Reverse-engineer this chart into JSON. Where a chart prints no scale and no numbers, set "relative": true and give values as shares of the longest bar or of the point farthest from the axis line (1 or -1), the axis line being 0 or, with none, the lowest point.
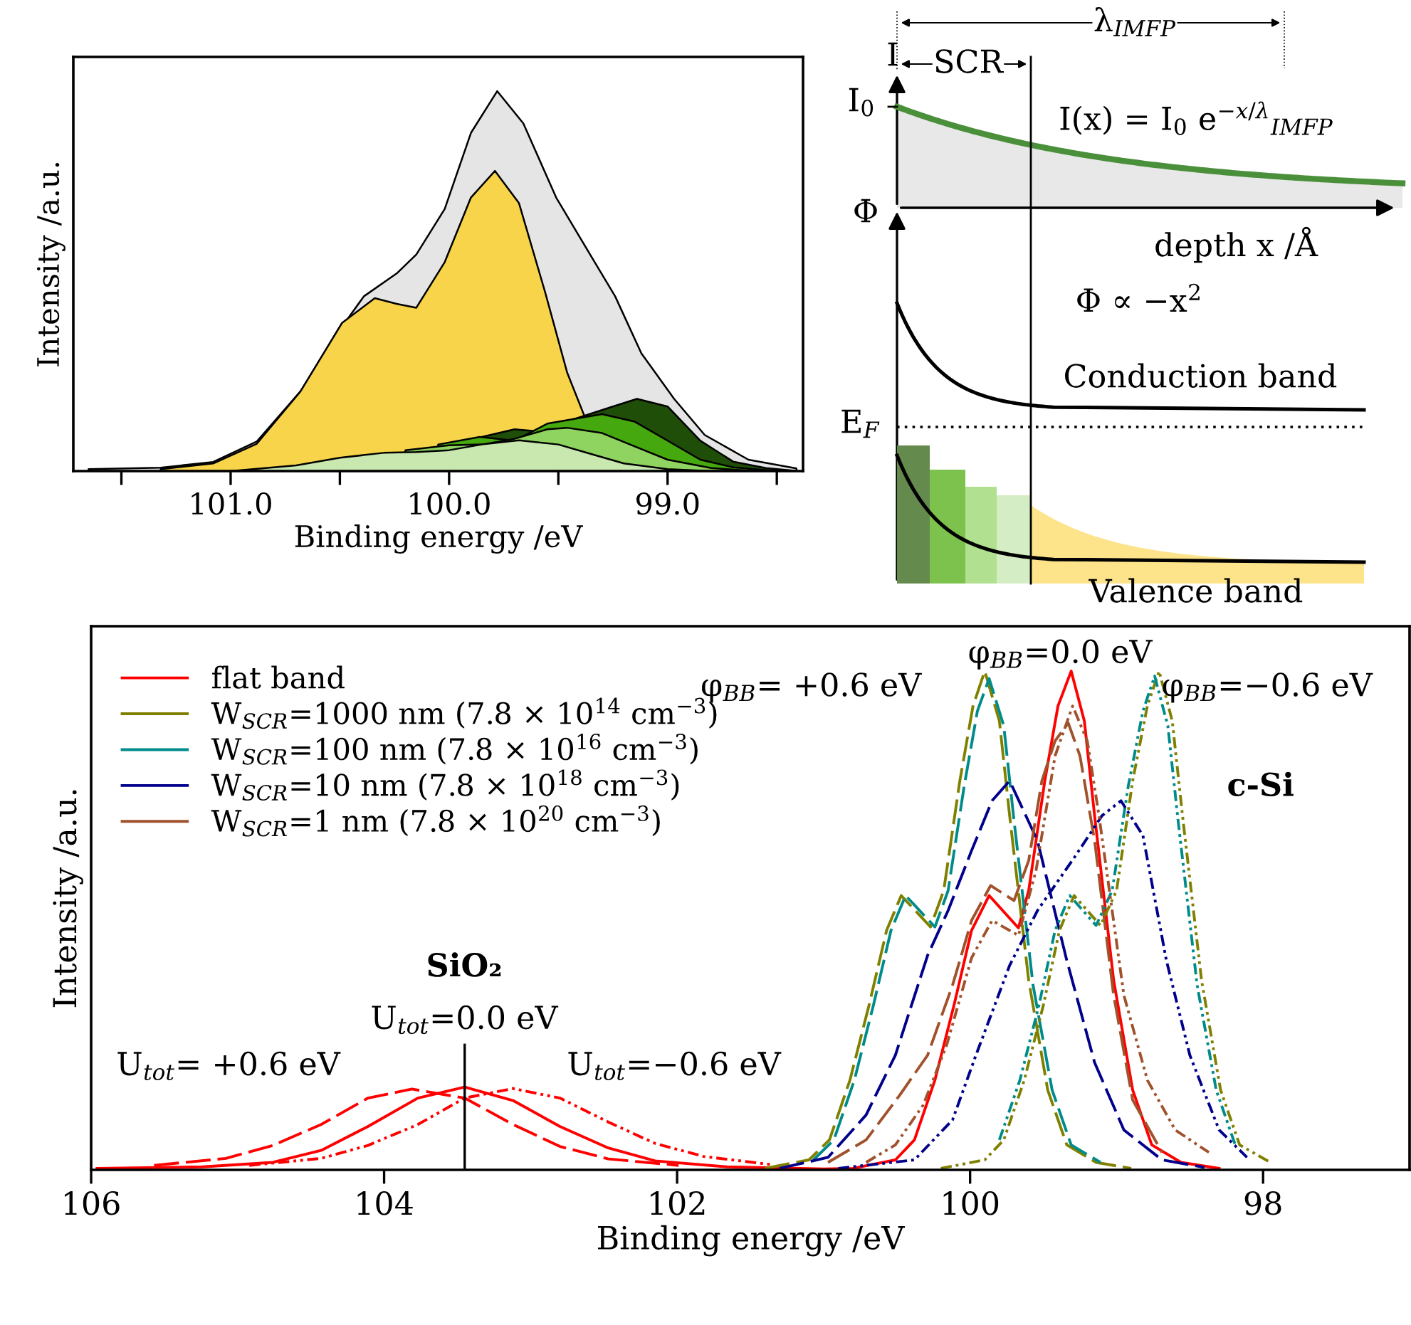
{
  "chart_data": [
    {
      "type": "area",
      "relative": true,
      "xlabel": "Binding energy /eV",
      "ylabel": "Intensity /a.u.",
      "xlim": [
        101.72,
        98.38
      ],
      "xticks": [
        {
          "value": 101.5,
          "label": null
        },
        {
          "value": 101,
          "label": "101.0"
        },
        {
          "value": 100.5,
          "label": null
        },
        {
          "value": 100,
          "label": "100.0"
        },
        {
          "value": 99.5,
          "label": null
        },
        {
          "value": 99,
          "label": "99.0"
        },
        {
          "value": 98.5,
          "label": null
        }
      ],
      "series": [
        {
          "color": "#e5e5e5",
          "x": [
            101.65,
            101.32,
            101.08,
            100.88,
            100.68,
            100.54,
            100.39,
            100.24,
            100.15,
            100.02,
            99.9,
            99.78,
            99.66,
            99.51,
            99.36,
            99.24,
            99.12,
            98.97,
            98.83,
            98.63,
            98.41
          ],
          "values": [
            0.005,
            0.009,
            0.024,
            0.078,
            0.21,
            0.34,
            0.46,
            0.52,
            0.57,
            0.69,
            0.89,
            1.0,
            0.915,
            0.72,
            0.575,
            0.46,
            0.31,
            0.19,
            0.095,
            0.03,
            0.007
          ]
        },
        {
          "color": "#f7d44a",
          "x": [
            101.32,
            101.08,
            100.88,
            100.68,
            100.49,
            100.34,
            100.24,
            100.15,
            100.02,
            99.9,
            99.79,
            99.68,
            99.56,
            99.46,
            99.38
          ],
          "values": [
            0.005,
            0.02,
            0.072,
            0.21,
            0.39,
            0.455,
            0.44,
            0.43,
            0.55,
            0.72,
            0.79,
            0.705,
            0.47,
            0.26,
            0.144
          ]
        },
        {
          "color": "#1f4e08",
          "x": [
            99.85,
            99.7,
            99.6,
            99.25,
            99.14,
            99.0,
            98.85,
            98.7,
            98.55,
            98.4
          ],
          "values": [
            0.09,
            0.11,
            0.105,
            0.17,
            0.19,
            0.17,
            0.08,
            0.025,
            0.008,
            0
          ]
        },
        {
          "color": "#45a80e",
          "x": [
            100.05,
            99.86,
            99.7,
            99.55,
            99.4,
            99.3,
            99.15,
            99.0,
            98.85,
            98.7,
            98.5
          ],
          "values": [
            0.07,
            0.09,
            0.08,
            0.125,
            0.14,
            0.15,
            0.13,
            0.08,
            0.03,
            0.01,
            0
          ]
        },
        {
          "color": "#8fd460",
          "x": [
            100.2,
            100.0,
            99.85,
            99.7,
            99.55,
            99.46,
            99.3,
            99.15,
            99.0,
            98.8,
            98.6
          ],
          "values": [
            0.055,
            0.068,
            0.07,
            0.085,
            0.11,
            0.114,
            0.1,
            0.065,
            0.03,
            0.008,
            0
          ]
        },
        {
          "color": "#c8e8b0",
          "x": [
            101.0,
            100.7,
            100.5,
            100.3,
            100.15,
            100.0,
            99.85,
            99.68,
            99.5,
            99.35,
            99.2,
            99.0,
            98.8
          ],
          "values": [
            0,
            0.015,
            0.035,
            0.048,
            0.05,
            0.055,
            0.07,
            0.081,
            0.07,
            0.045,
            0.02,
            0.005,
            0
          ]
        }
      ]
    },
    {
      "type": "other",
      "annotations": [
        "λ$_{IMFP}$",
        "SCR",
        "I",
        "I$_{0}$",
        "I(x) = I$_{0}$ e$^{−x/λ}$$_{IMFP}$",
        "Φ",
        "depth x /Å",
        "Φ ∝ −x$^{2}$",
        "Conduction band",
        "E$_{F}$",
        "Valence band"
      ]
    },
    {
      "type": "line",
      "relative": true,
      "xlabel": "Binding energy /eV",
      "ylabel": "Intensity /a.u.",
      "xlim": [
        106.0,
        97.0
      ],
      "xticks": [
        106,
        104,
        102,
        100,
        98
      ],
      "legend": "top left",
      "ref_lines": [
        {
          "axis": "x",
          "value": 103.45,
          "color": "#000000"
        }
      ],
      "annotations": [
        "φ$_{BB}$= +0.6 eV",
        "φ$_{BB}$=0.0 eV",
        "φ$_{BB}$=−0.6 eV",
        "c-Si",
        "SiO₂",
        "U$_{tot}$=0.0 eV",
        "U$_{tot}$= +0.6 eV",
        "U$_{tot}$=−0.6 eV"
      ],
      "series": [
        {
          "name": "flat band",
          "color": "#ff0000",
          "line_style": "solid",
          "x": [
            105.96,
            105.24,
            104.76,
            104.43,
            104.11,
            103.77,
            103.45,
            103.12,
            102.8,
            102.47,
            102.15,
            101.66,
            101.0,
            100.8,
            100.51,
            100.38,
            100.24,
            100.11,
            99.99,
            99.87,
            99.67,
            99.6,
            99.49,
            99.4,
            99.31,
            99.22,
            99.15,
            99.02,
            98.89,
            98.76,
            98.56,
            98.3
          ],
          "values": [
            0.003,
            0.006,
            0.015,
            0.039,
            0.087,
            0.144,
            0.166,
            0.139,
            0.087,
            0.044,
            0.018,
            0.006,
            0.002,
            0.003,
            0.02,
            0.06,
            0.18,
            0.33,
            0.48,
            0.55,
            0.485,
            0.56,
            0.78,
            0.93,
            1.0,
            0.9,
            0.71,
            0.38,
            0.16,
            0.05,
            0.015,
            0.003
          ]
        },
        {
          "name": "W$_{SCR}$=1000 nm (7.8 × 10$^{14}$ cm$^{−3}$)",
          "color": "#808000",
          "line_style": "dashed",
          "x": [
            101.4,
            101.1,
            100.96,
            100.82,
            100.69,
            100.57,
            100.47,
            100.27,
            100.18,
            100.07,
            99.98,
            99.9,
            99.8,
            99.73,
            99.6,
            99.47,
            99.34,
            99.14,
            98.9
          ],
          "values": [
            0.003,
            0.02,
            0.06,
            0.18,
            0.33,
            0.48,
            0.55,
            0.487,
            0.56,
            0.78,
            0.93,
            1.0,
            0.9,
            0.71,
            0.38,
            0.16,
            0.05,
            0.015,
            0.003
          ]
        },
        {
          "name": "W$_{SCR}$=100 nm (7.8 × 10$^{16}$ cm$^{−3}$)",
          "color": "#008b8b",
          "line_style": "dashed",
          "x": [
            101.07,
            100.93,
            100.79,
            100.66,
            100.54,
            100.44,
            100.24,
            100.15,
            100.04,
            99.95,
            99.87,
            99.77,
            99.7,
            99.57,
            99.44,
            99.31,
            99.11
          ],
          "values": [
            0.02,
            0.06,
            0.18,
            0.33,
            0.48,
            0.55,
            0.487,
            0.56,
            0.77,
            0.92,
            0.985,
            0.89,
            0.7,
            0.37,
            0.16,
            0.05,
            0.015
          ]
        },
        {
          "name": "W$_{SCR}$=10 nm (7.8 × 10$^{18}$ cm$^{−3}$)",
          "color": "#00008b",
          "line_style": "dashed",
          "x": [
            101.3,
            100.97,
            100.71,
            100.51,
            100.29,
            100.15,
            99.99,
            99.85,
            99.73,
            99.54,
            99.34,
            99.15,
            98.95,
            98.69,
            98.4
          ],
          "values": [
            0.003,
            0.025,
            0.11,
            0.23,
            0.43,
            0.52,
            0.64,
            0.74,
            0.78,
            0.66,
            0.42,
            0.215,
            0.08,
            0.02,
            0.005
          ]
        },
        {
          "name": "W$_{SCR}$=1 nm (7.8 × 10$^{20}$ cm$^{−3}$)",
          "color": "#a0522d",
          "line_style": "dashed",
          "x": [
            100.97,
            100.71,
            100.48,
            100.29,
            100.12,
            99.99,
            99.86,
            99.7,
            99.6,
            99.51,
            99.42,
            99.33,
            99.25,
            99.15,
            99.02,
            98.89,
            98.69
          ],
          "values": [
            0.015,
            0.06,
            0.15,
            0.23,
            0.37,
            0.5,
            0.57,
            0.54,
            0.62,
            0.78,
            0.86,
            0.896,
            0.83,
            0.66,
            0.35,
            0.14,
            0.035
          ]
        },
        {
          "color": "#808000",
          "line_style": "dotted",
          "x": [
            100.2,
            99.9,
            99.77,
            99.63,
            99.5,
            99.39,
            99.29,
            99.11,
            99.0,
            98.89,
            98.79,
            98.71,
            98.62,
            98.55,
            98.42,
            98.29,
            98.16,
            97.95
          ],
          "values": [
            0.003,
            0.02,
            0.06,
            0.18,
            0.33,
            0.48,
            0.55,
            0.49,
            0.56,
            0.78,
            0.93,
            1.0,
            0.9,
            0.71,
            0.38,
            0.16,
            0.05,
            0.015
          ]
        },
        {
          "color": "#008b8b",
          "line_style": "dotted",
          "x": [
            99.8,
            99.66,
            99.53,
            99.42,
            99.32,
            99.14,
            99.03,
            98.92,
            98.82,
            98.74,
            98.65,
            98.58,
            98.45,
            98.32,
            98.19
          ],
          "values": [
            0.06,
            0.18,
            0.33,
            0.48,
            0.55,
            0.49,
            0.56,
            0.77,
            0.92,
            0.99,
            0.89,
            0.7,
            0.37,
            0.16,
            0.05
          ]
        },
        {
          "color": "#00008b",
          "line_style": "dotted",
          "x": [
            100.9,
            100.38,
            100.12,
            99.96,
            99.73,
            99.54,
            99.28,
            99.1,
            98.97,
            98.82,
            98.66,
            98.5,
            98.3,
            98.11
          ],
          "values": [
            0.003,
            0.02,
            0.1,
            0.23,
            0.41,
            0.52,
            0.63,
            0.71,
            0.74,
            0.67,
            0.42,
            0.23,
            0.08,
            0.025
          ]
        },
        {
          "color": "#a0522d",
          "line_style": "dotted",
          "x": [
            100.71,
            100.51,
            100.32,
            100.16,
            99.99,
            99.85,
            99.67,
            99.55,
            99.42,
            99.3,
            99.2,
            99.12,
            98.95,
            98.79,
            98.6,
            98.37
          ],
          "values": [
            0.015,
            0.05,
            0.13,
            0.25,
            0.425,
            0.5,
            0.47,
            0.6,
            0.83,
            0.93,
            0.86,
            0.71,
            0.35,
            0.18,
            0.08,
            0.035
          ]
        },
        {
          "color": "#ff0000",
          "line_style": "dashed",
          "x": [
            105.57,
            105.08,
            104.76,
            104.43,
            104.11,
            103.81,
            103.45,
            103.12,
            102.8,
            102.47,
            101.99
          ],
          "values": [
            0.009,
            0.023,
            0.049,
            0.091,
            0.144,
            0.162,
            0.144,
            0.091,
            0.047,
            0.022,
            0.009
          ]
        },
        {
          "color": "#ff0000",
          "line_style": "dotted",
          "x": [
            104.92,
            104.43,
            104.11,
            103.77,
            103.45,
            103.12,
            102.8,
            102.47,
            102.15,
            101.82,
            101.34
          ],
          "values": [
            0.009,
            0.023,
            0.049,
            0.091,
            0.144,
            0.163,
            0.144,
            0.096,
            0.053,
            0.027,
            0.01
          ]
        }
      ]
    }
  ]
}
